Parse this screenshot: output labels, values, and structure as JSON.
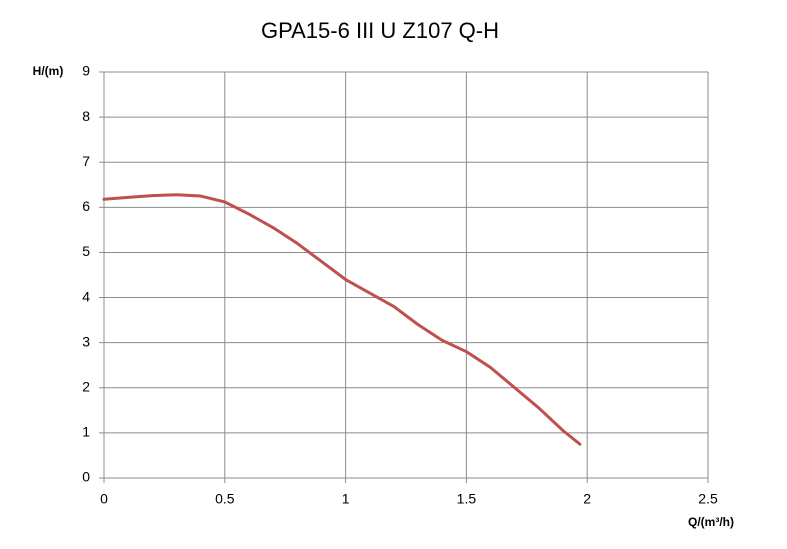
{
  "chart_data": {
    "type": "line",
    "title": "GPA15-6 III U Z107 Q-H",
    "y_label": "H/(m)",
    "x_label": "Q/(m³/h)",
    "x": [
      0,
      0.1,
      0.2,
      0.3,
      0.4,
      0.5,
      0.6,
      0.7,
      0.8,
      0.9,
      1.0,
      1.1,
      1.2,
      1.3,
      1.4,
      1.5,
      1.6,
      1.7,
      1.8,
      1.9,
      1.97
    ],
    "series": [
      {
        "color": "#c0504d",
        "values": [
          6.18,
          6.22,
          6.26,
          6.28,
          6.25,
          6.12,
          5.85,
          5.55,
          5.2,
          4.8,
          4.4,
          4.1,
          3.8,
          3.4,
          3.05,
          2.8,
          2.45,
          2.0,
          1.55,
          1.05,
          0.75
        ]
      }
    ],
    "xlim": [
      0,
      2.5
    ],
    "xticks": [
      0,
      0.5,
      1,
      1.5,
      2,
      2.5
    ],
    "ylim": [
      0,
      9
    ],
    "yticks": [
      0,
      1,
      2,
      3,
      4,
      5,
      6,
      7,
      8,
      9
    ],
    "grid": true
  }
}
